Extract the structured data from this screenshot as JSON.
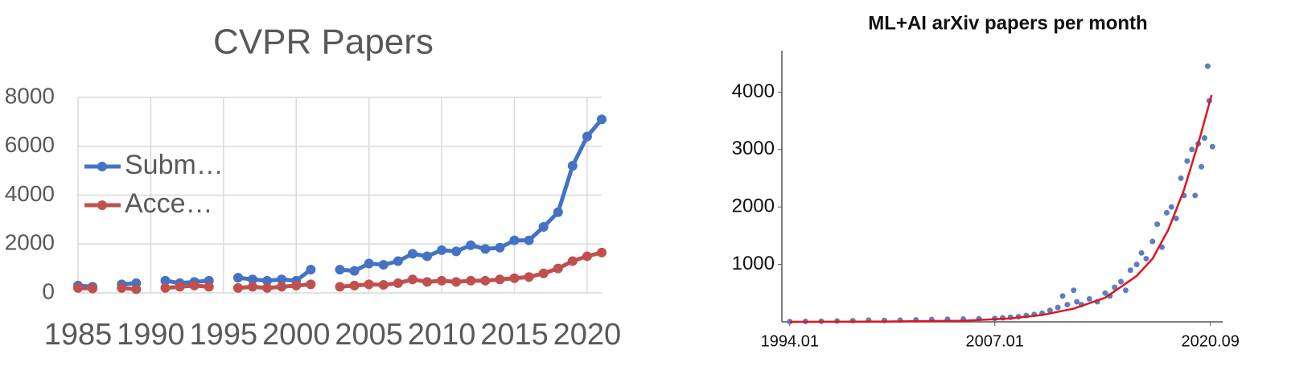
{
  "chart_data": [
    {
      "type": "line",
      "title": "CVPR Papers",
      "legend": "left",
      "grid": true,
      "x": [
        1985,
        1986,
        1987,
        1988,
        1989,
        1990,
        1991,
        1992,
        1993,
        1994,
        1995,
        1996,
        1997,
        1998,
        1999,
        2000,
        2001,
        2002,
        2003,
        2004,
        2005,
        2006,
        2007,
        2008,
        2009,
        2010,
        2011,
        2012,
        2013,
        2014,
        2015,
        2016,
        2017,
        2018,
        2019,
        2020,
        2021
      ],
      "series": [
        {
          "name": "Subm…",
          "color": "#4472c4",
          "values": [
            300,
            250,
            null,
            350,
            400,
            null,
            500,
            400,
            450,
            500,
            null,
            620,
            550,
            500,
            550,
            500,
            950,
            null,
            950,
            900,
            1200,
            1150,
            1300,
            1600,
            1500,
            1750,
            1700,
            1950,
            1800,
            1850,
            2150,
            2150,
            2700,
            3300,
            5200,
            6400,
            7100
          ]
        },
        {
          "name": "Acce…",
          "color": "#c0504d",
          "values": [
            200,
            180,
            null,
            200,
            150,
            null,
            200,
            250,
            300,
            250,
            null,
            200,
            250,
            200,
            250,
            300,
            350,
            null,
            250,
            300,
            350,
            330,
            400,
            550,
            450,
            500,
            450,
            500,
            500,
            550,
            600,
            650,
            800,
            1000,
            1300,
            1500,
            1650
          ]
        }
      ],
      "xlim": [
        1985,
        2021
      ],
      "xticks": [
        1985,
        1990,
        1995,
        2000,
        2005,
        2010,
        2015,
        2020
      ],
      "ylim": [
        0,
        8000
      ],
      "yticks": [
        0,
        2000,
        4000,
        6000,
        8000
      ]
    },
    {
      "type": "scatter",
      "title": "ML+AI arXiv papers per month",
      "series": [
        {
          "style": "marker",
          "color": "#5b7fbf",
          "x": [
            1994,
            1995,
            1996,
            1997,
            1998,
            1999,
            2000,
            2001,
            2002,
            2003,
            2004,
            2005,
            2006,
            2007,
            2007.5,
            2008,
            2008.5,
            2009,
            2009.5,
            2010,
            2010.5,
            2011,
            2011.3,
            2011.6,
            2012,
            2012.2,
            2012.5,
            2013,
            2013.5,
            2014,
            2014.3,
            2014.6,
            2015,
            2015.3,
            2015.6,
            2016,
            2016.3,
            2016.6,
            2017,
            2017.3,
            2017.6,
            2017.9,
            2018.2,
            2018.5,
            2018.8,
            2019,
            2019.2,
            2019.5,
            2019.7,
            2019.9,
            2020.1,
            2020.3,
            2020.5,
            2020.6,
            2020.8
          ],
          "values": [
            5,
            8,
            10,
            15,
            20,
            30,
            25,
            30,
            35,
            40,
            45,
            50,
            55,
            60,
            70,
            80,
            90,
            110,
            130,
            150,
            200,
            250,
            450,
            300,
            550,
            350,
            300,
            400,
            350,
            500,
            450,
            600,
            700,
            550,
            900,
            1000,
            1200,
            1100,
            1400,
            1700,
            1300,
            1900,
            2000,
            1800,
            2500,
            2200,
            2800,
            3000,
            2200,
            3100,
            2700,
            3200,
            4450,
            3850,
            3050
          ]
        },
        {
          "style": "line",
          "color": "#e0141e",
          "x": [
            1994,
            2000,
            2005,
            2008,
            2010,
            2012,
            2014,
            2016,
            2017,
            2018,
            2019,
            2020,
            2020.75
          ],
          "values": [
            0,
            5,
            20,
            60,
            120,
            230,
            420,
            800,
            1100,
            1600,
            2300,
            3200,
            3950
          ]
        }
      ],
      "xlim": [
        1993.5,
        2021.45
      ],
      "xticks": [
        {
          "value": 1994,
          "label": "1994.01"
        },
        {
          "value": 2007,
          "label": "2007.01"
        },
        {
          "value": 2020.67,
          "label": "2020.09"
        }
      ],
      "ylim": [
        0,
        4720
      ],
      "yticks": [
        1000,
        2000,
        3000,
        4000
      ]
    }
  ]
}
